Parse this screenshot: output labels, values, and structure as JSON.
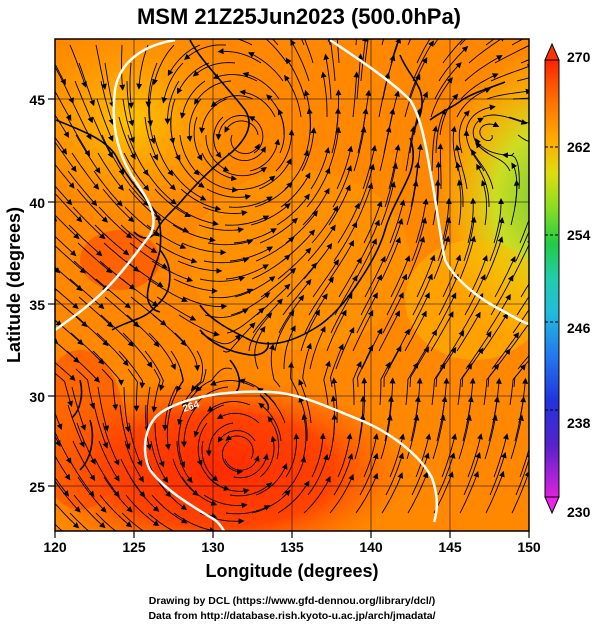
{
  "title": "MSM 21Z25Jun2023 (500.0hPa)",
  "xlabel": "Longitude (degrees)",
  "ylabel": "Latitude  (degrees)",
  "credits": {
    "line1": "Drawing by DCL (https://www.gfd-dennou.org/library/dcl/)",
    "line2": "Data from http://database.rish.kyoto-u.ac.jp/arch/jmadata/"
  },
  "contour_label": "264",
  "colorbar": {
    "min": 230,
    "max": 270,
    "ticks": [
      "270",
      "262",
      "254",
      "246",
      "238",
      "230"
    ],
    "colors": [
      "#dd22dd",
      "#5522cc",
      "#2233dd",
      "#2277ee",
      "#22bbdd",
      "#22ccaa",
      "#22cc44",
      "#88dd22",
      "#dddd11",
      "#ffaa00",
      "#ff6600",
      "#ff2200"
    ]
  },
  "map": {
    "xlim": [
      120,
      150
    ],
    "ylim": [
      22.4,
      47.6
    ],
    "xticks": [
      "120",
      "125",
      "130",
      "135",
      "140",
      "145",
      "150"
    ],
    "yticks": [
      "25",
      "30",
      "35",
      "40",
      "45"
    ]
  }
}
